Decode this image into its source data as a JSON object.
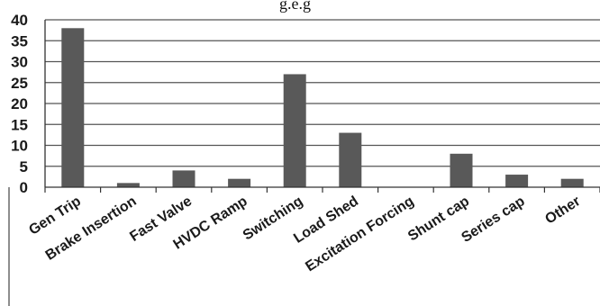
{
  "header_fragment": "g.e.g",
  "chart_data": {
    "type": "bar",
    "title": "",
    "xlabel": "",
    "ylabel": "",
    "categories": [
      "Gen Trip",
      "Brake Insertion",
      "Fast Valve",
      "HVDC Ramp",
      "Switching",
      "Load Shed",
      "Excitation Forcing",
      "Shunt cap",
      "Series cap",
      "Other"
    ],
    "values": [
      38,
      1,
      4,
      2,
      27,
      13,
      0,
      8,
      3,
      2
    ],
    "ylim": [
      0,
      40
    ],
    "yticks": [
      "0",
      "5",
      "10",
      "15",
      "20",
      "25",
      "30",
      "35",
      "40"
    ],
    "grid": true,
    "legend": "none",
    "bar_color": "#595959"
  }
}
